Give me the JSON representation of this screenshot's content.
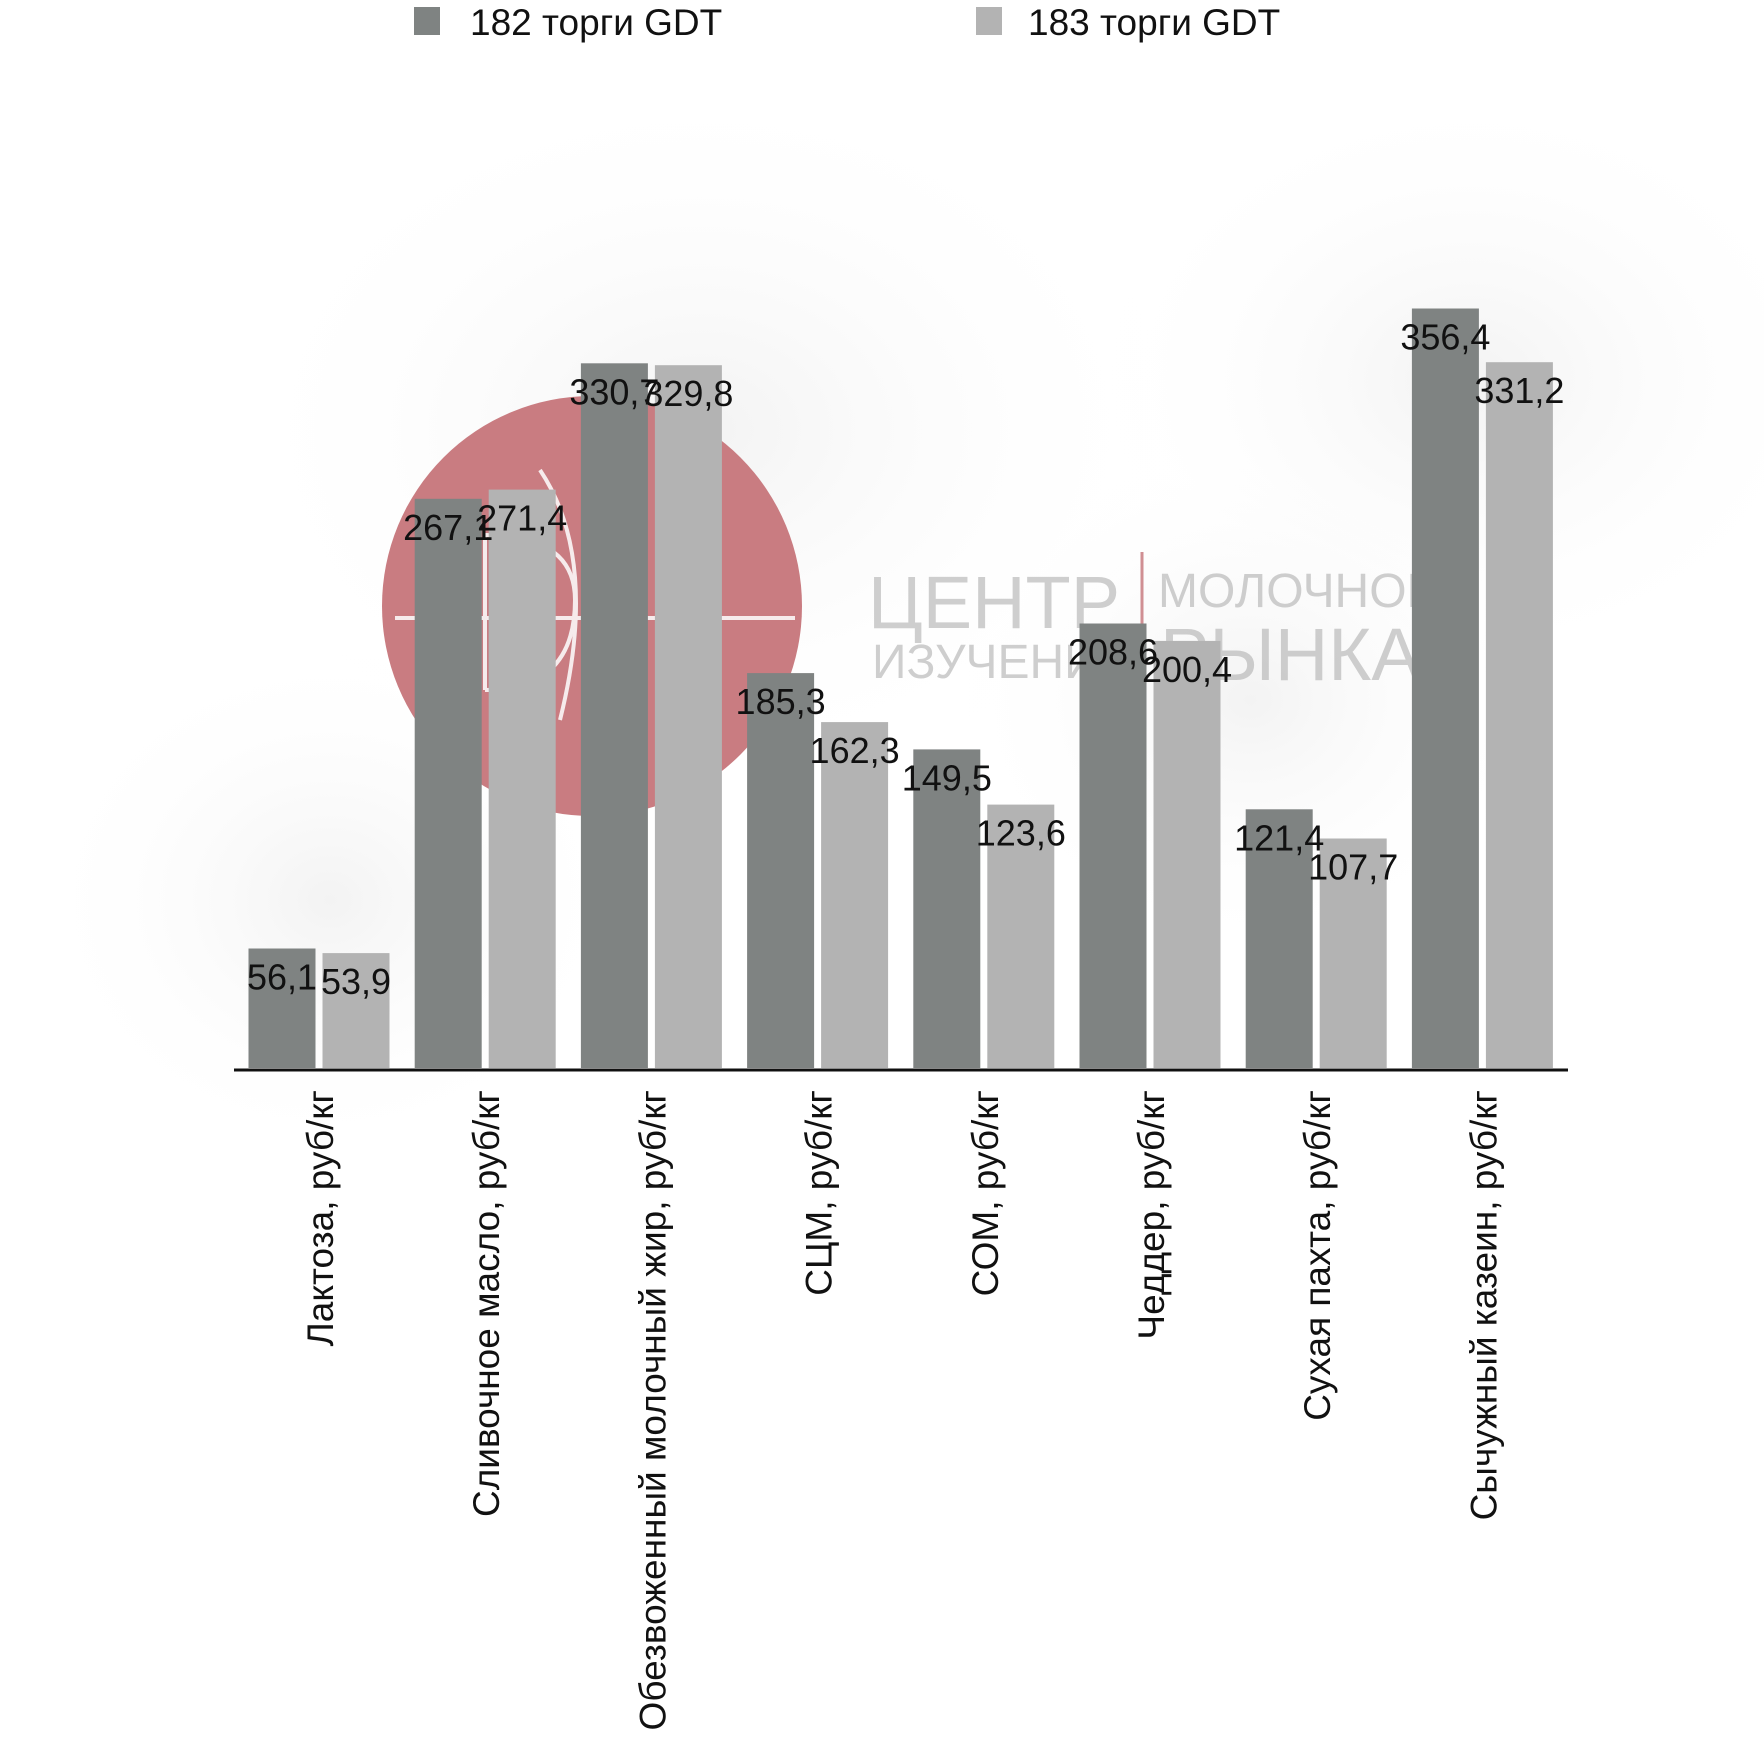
{
  "chart_data": {
    "type": "bar",
    "title": "",
    "xlabel": "",
    "ylabel": "",
    "categories": [
      "Лактоза, руб/кг",
      "Сливочное масло, руб/кг",
      "Обезвоженный молочный жир, руб/кг",
      "СЦМ, руб/кг",
      "СОМ, руб/кг",
      "Чеддер, руб/кг",
      "Сухая пахта, руб/кг",
      "Сычужный казеин, руб/кг"
    ],
    "series": [
      {
        "name": "182 торги GDT",
        "color": "#7f8382",
        "values": [
          56.1,
          267.1,
          330.7,
          185.3,
          149.5,
          208.6,
          121.4,
          356.4
        ],
        "labels": [
          "56,1",
          "267,1",
          "330,7",
          "185,3",
          "149,5",
          "208,6",
          "121,4",
          "356,4"
        ]
      },
      {
        "name": "183 торги GDT",
        "color": "#b3b3b3",
        "values": [
          53.9,
          271.4,
          329.8,
          162.3,
          123.6,
          200.4,
          107.7,
          331.2
        ],
        "labels": [
          "53,9",
          "271,4",
          "329,8",
          "162,3",
          "123,6",
          "200,4",
          "107,7",
          "331,2"
        ]
      }
    ],
    "ylim": [
      0,
      400
    ],
    "grid": false,
    "legend_position": "top",
    "y_axis_visible": false,
    "data_labels": true
  },
  "watermark": {
    "type": "logo",
    "circle_color": "#c97c81",
    "line1_left": "ЦЕНТР",
    "line1_right": "МОЛОЧНОГО",
    "line2_left": "ИЗУЧЕНИЯ",
    "line2_right": "РЫНКА"
  }
}
